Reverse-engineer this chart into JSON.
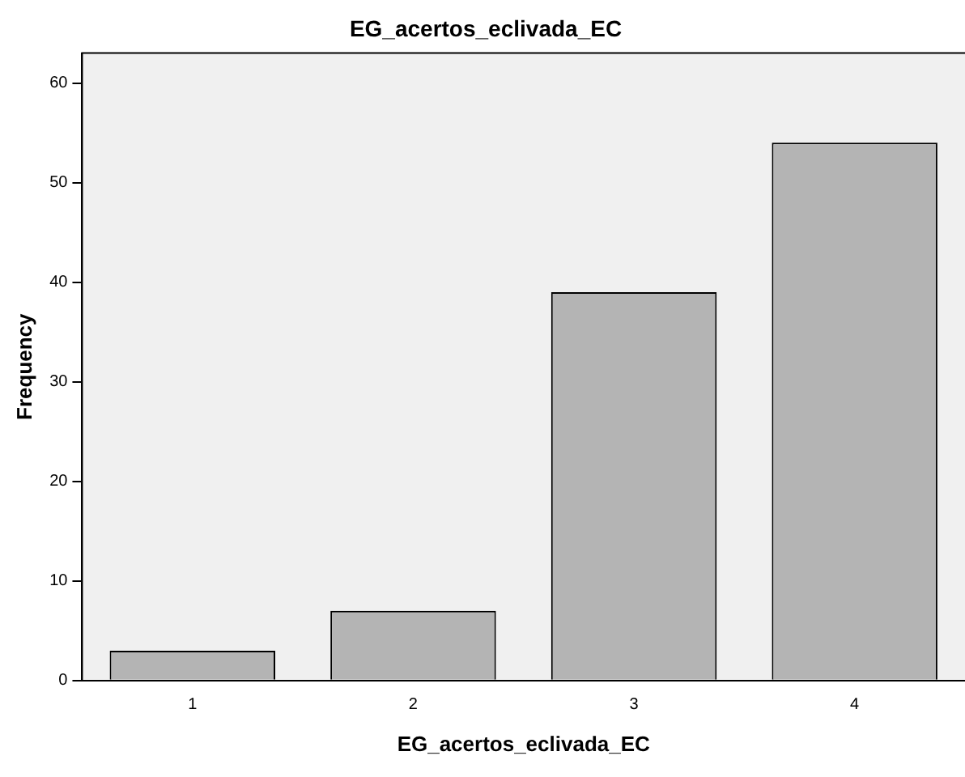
{
  "chart_data": {
    "type": "bar",
    "title": "EG_acertos_eclivada_EC",
    "xlabel": "EG_acertos_eclivada_EC",
    "ylabel": "Frequency",
    "categories": [
      "1",
      "2",
      "3",
      "4"
    ],
    "values": [
      3,
      7,
      39,
      54
    ],
    "color": "#b4b4b4",
    "ylim": [
      0,
      63
    ],
    "yticks": [
      0,
      10,
      20,
      30,
      40,
      50,
      60
    ],
    "grid": false,
    "legend": false
  }
}
